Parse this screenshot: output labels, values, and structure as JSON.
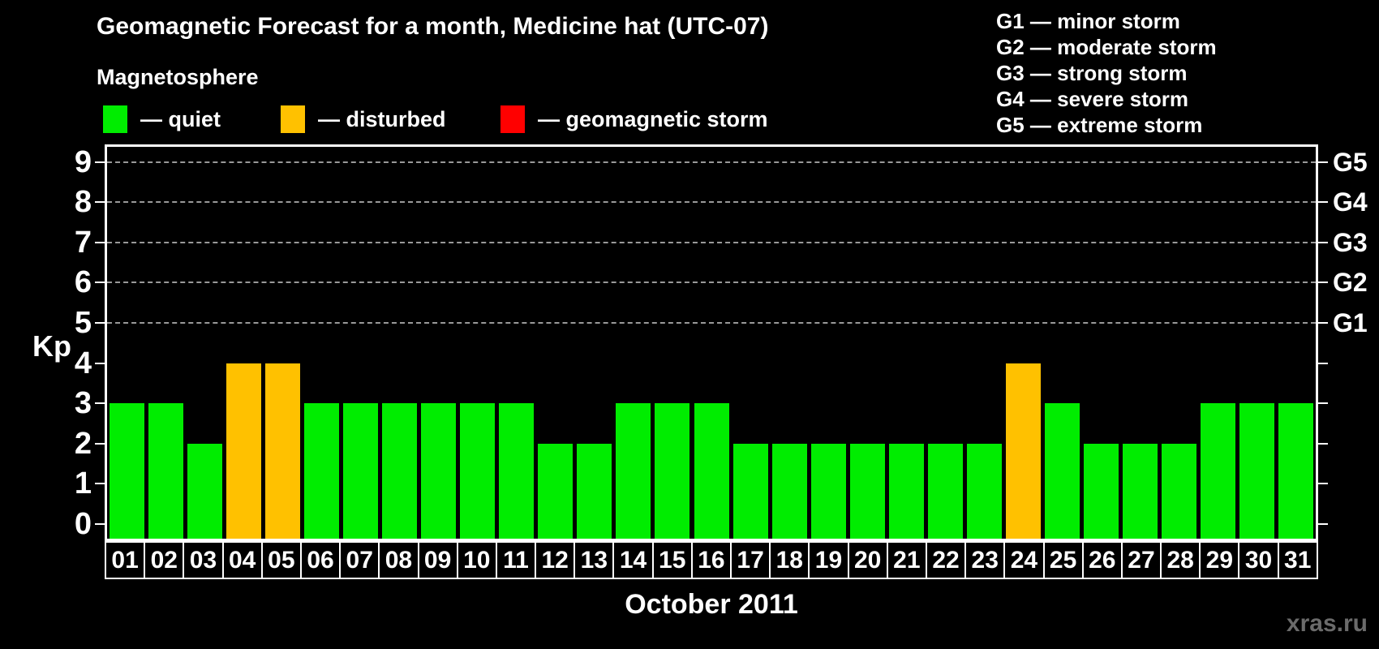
{
  "header": {
    "title": "Geomagnetic Forecast for a month, Medicine hat (UTC-07)"
  },
  "legend": {
    "heading": "Magnetosphere",
    "items": [
      {
        "key": "quiet",
        "label": "— quiet",
        "color": "#00ed00"
      },
      {
        "key": "disturbed",
        "label": "— disturbed",
        "color": "#ffc100"
      },
      {
        "key": "storm",
        "label": "— geomagnetic storm",
        "color": "#ff0000"
      }
    ]
  },
  "g_scale_legend": {
    "items": [
      {
        "label": "G1 — minor storm"
      },
      {
        "label": "G2 — moderate storm"
      },
      {
        "label": "G3 — strong storm"
      },
      {
        "label": "G4 — severe storm"
      },
      {
        "label": "G5 — extreme storm"
      }
    ]
  },
  "watermark": "xras.ru",
  "chart_data": {
    "type": "bar",
    "title": "Geomagnetic Forecast for a month, Medicine hat (UTC-07)",
    "xlabel": "October 2011",
    "ylabel": "Kp",
    "ylim": [
      0,
      9
    ],
    "y_ticks": [
      0,
      1,
      2,
      3,
      4,
      5,
      6,
      7,
      8,
      9
    ],
    "gridlines_at_kp": [
      5,
      6,
      7,
      8,
      9
    ],
    "grid_style": "dashed",
    "legend_position": "top-left",
    "right_axis_labels": [
      {
        "kp": 5,
        "label": "G1"
      },
      {
        "kp": 6,
        "label": "G2"
      },
      {
        "kp": 7,
        "label": "G3"
      },
      {
        "kp": 8,
        "label": "G4"
      },
      {
        "kp": 9,
        "label": "G5"
      }
    ],
    "categories": [
      "01",
      "02",
      "03",
      "04",
      "05",
      "06",
      "07",
      "08",
      "09",
      "10",
      "11",
      "12",
      "13",
      "14",
      "15",
      "16",
      "17",
      "18",
      "19",
      "20",
      "21",
      "22",
      "23",
      "24",
      "25",
      "26",
      "27",
      "28",
      "29",
      "30",
      "31"
    ],
    "values": [
      3,
      3,
      2,
      4,
      4,
      3,
      3,
      3,
      3,
      3,
      3,
      2,
      2,
      3,
      3,
      3,
      2,
      2,
      2,
      2,
      2,
      2,
      2,
      4,
      3,
      2,
      2,
      2,
      3,
      3,
      3
    ],
    "statuses": [
      "quiet",
      "quiet",
      "quiet",
      "disturbed",
      "disturbed",
      "quiet",
      "quiet",
      "quiet",
      "quiet",
      "quiet",
      "quiet",
      "quiet",
      "quiet",
      "quiet",
      "quiet",
      "quiet",
      "quiet",
      "quiet",
      "quiet",
      "quiet",
      "quiet",
      "quiet",
      "quiet",
      "disturbed",
      "quiet",
      "quiet",
      "quiet",
      "quiet",
      "quiet",
      "quiet",
      "quiet"
    ],
    "colors": {
      "quiet": "#00ed00",
      "disturbed": "#ffc100",
      "storm": "#ff0000"
    }
  }
}
